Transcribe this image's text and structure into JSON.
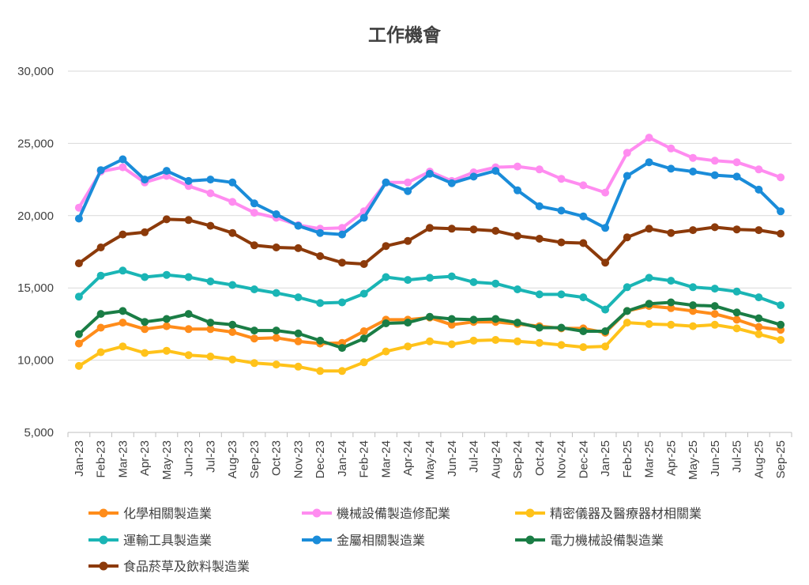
{
  "chart_data": {
    "type": "line",
    "title": "工作機會",
    "xlabel": "",
    "ylabel": "",
    "ylim": [
      5000,
      30000
    ],
    "yticks": [
      5000,
      10000,
      15000,
      20000,
      25000,
      30000
    ],
    "ytick_labels": [
      "5,000",
      "10,000",
      "15,000",
      "20,000",
      "25,000",
      "30,000"
    ],
    "grid": true,
    "legend_position": "bottom",
    "categories": [
      "Jan-23",
      "Feb-23",
      "Mar-23",
      "Apr-23",
      "May-23",
      "Jun-23",
      "Jul-23",
      "Aug-23",
      "Sep-23",
      "Oct-23",
      "Nov-23",
      "Dec-23",
      "Jan-24",
      "Feb-24",
      "Mar-24",
      "Apr-24",
      "May-24",
      "Jun-24",
      "Jul-24",
      "Aug-24",
      "Sep-24",
      "Oct-24",
      "Nov-24",
      "Dec-24",
      "Jan-25",
      "Feb-25",
      "Mar-25",
      "Apr-25",
      "May-25",
      "Jun-25",
      "Jul-25",
      "Aug-25",
      "Sep-25"
    ],
    "series": [
      {
        "name": "化學相關製造業",
        "color": "#FF8C1A",
        "values": [
          11150,
          12250,
          12600,
          12150,
          12350,
          12150,
          12150,
          11950,
          11500,
          11550,
          11300,
          11150,
          11200,
          12000,
          12800,
          12800,
          12950,
          12450,
          12650,
          12650,
          12500,
          12350,
          12200,
          12200,
          11900,
          13400,
          13750,
          13600,
          13400,
          13200,
          12800,
          12300,
          12100
        ]
      },
      {
        "name": "機械設備製造修配業",
        "color": "#FF8CF0",
        "values": [
          20550,
          23050,
          23350,
          22300,
          22750,
          22050,
          21550,
          20950,
          20200,
          19850,
          19350,
          19100,
          19150,
          20300,
          22300,
          22300,
          23050,
          22400,
          23000,
          23350,
          23400,
          23200,
          22550,
          22100,
          21600,
          24350,
          25400,
          24650,
          24000,
          23800,
          23700,
          23200,
          22650
        ]
      },
      {
        "name": "精密儀器及醫療器材相關業",
        "color": "#FFC21A",
        "values": [
          9600,
          10550,
          10950,
          10500,
          10650,
          10350,
          10250,
          10050,
          9800,
          9700,
          9550,
          9250,
          9250,
          9850,
          10600,
          10950,
          11300,
          11100,
          11350,
          11400,
          11300,
          11200,
          11050,
          10900,
          10950,
          12600,
          12500,
          12450,
          12350,
          12450,
          12200,
          11800,
          11400
        ]
      },
      {
        "name": "運輸工具製造業",
        "color": "#1AB5B5",
        "values": [
          14400,
          15850,
          16200,
          15750,
          15900,
          15750,
          15450,
          15200,
          14900,
          14650,
          14350,
          13950,
          14000,
          14600,
          15750,
          15550,
          15700,
          15800,
          15400,
          15300,
          14900,
          14550,
          14550,
          14350,
          13500,
          15050,
          15700,
          15500,
          15050,
          14950,
          14750,
          14350,
          13800
        ]
      },
      {
        "name": "金屬相關製造業",
        "color": "#1A8CD9",
        "values": [
          19800,
          23150,
          23900,
          22500,
          23100,
          22400,
          22500,
          22300,
          20850,
          20100,
          19300,
          18800,
          18700,
          19850,
          22300,
          21700,
          22900,
          22250,
          22700,
          23100,
          21750,
          20650,
          20350,
          19950,
          19150,
          22750,
          23700,
          23250,
          23050,
          22800,
          22700,
          21800,
          20300
        ]
      },
      {
        "name": "電力機械設備製造業",
        "color": "#1A7D45",
        "values": [
          11800,
          13200,
          13400,
          12650,
          12850,
          13200,
          12600,
          12450,
          12050,
          12050,
          11850,
          11350,
          10850,
          11500,
          12550,
          12600,
          13000,
          12850,
          12800,
          12850,
          12600,
          12250,
          12250,
          12000,
          12000,
          13400,
          13900,
          14000,
          13800,
          13750,
          13300,
          12900,
          12450
        ]
      },
      {
        "name": "食品菸草及飲料製造業",
        "color": "#8C3A0A",
        "values": [
          16700,
          17800,
          18700,
          18850,
          19750,
          19700,
          19300,
          18800,
          17950,
          17800,
          17750,
          17200,
          16750,
          16650,
          17900,
          18250,
          19150,
          19100,
          19050,
          18950,
          18600,
          18400,
          18150,
          18100,
          16750,
          18500,
          19100,
          18800,
          19000,
          19200,
          19050,
          19000,
          18750
        ]
      }
    ]
  }
}
